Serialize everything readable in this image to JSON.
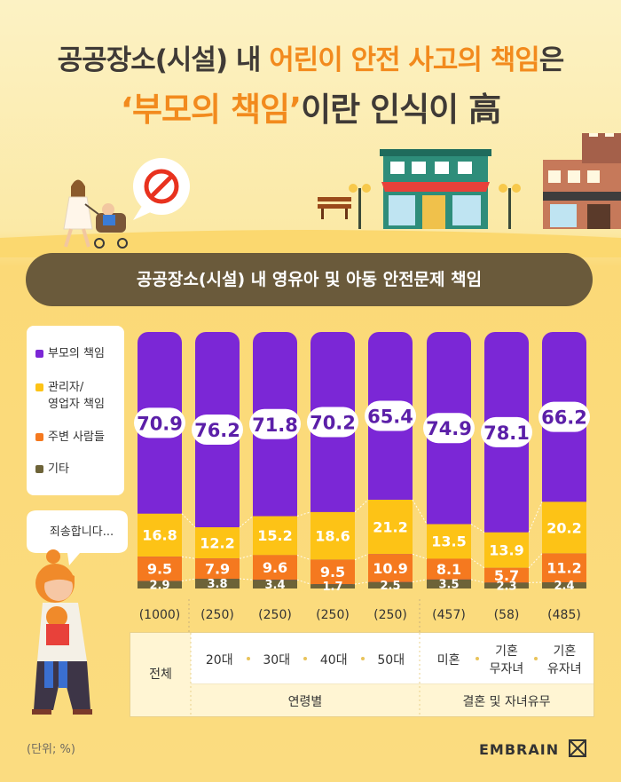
{
  "title": {
    "line1_prefix": "공공장소(시설) 내 ",
    "line1_highlight": "어린이 안전 사고의 책임",
    "line1_suffix": "은",
    "line2_highlight": "‘부모의 책임’",
    "line2_suffix": "이란 인식이 高"
  },
  "banner": "공공장소(시설) 내 영유아 및 아동 안전문제 책임",
  "speech_bubble": "죄송합니다...",
  "unit_note": "(단위; %)",
  "brand": "EMBRAIN",
  "colors": {
    "parent": "#7b27d6",
    "manager": "#fdc316",
    "people": "#f5791f",
    "other": "#6d6338",
    "accent": "#f28a1d"
  },
  "legend": [
    {
      "label": "부모의 책임",
      "color": "#7b27d6"
    },
    {
      "label": "관리자/\n영업자 책임",
      "color": "#fdc316"
    },
    {
      "label": "주변 사람들",
      "color": "#f5791f"
    },
    {
      "label": "기타",
      "color": "#6d6338"
    }
  ],
  "chart_data": {
    "type": "bar",
    "stacked": true,
    "categories": [
      "전체",
      "20대",
      "30대",
      "40대",
      "50대",
      "미혼",
      "기혼 무자녀",
      "기혼 유자녀"
    ],
    "sample_sizes": [
      "(1000)",
      "(250)",
      "(250)",
      "(250)",
      "(250)",
      "(457)",
      "(58)",
      "(485)"
    ],
    "series": [
      {
        "name": "부모의 책임",
        "values": [
          70.9,
          76.2,
          71.8,
          70.2,
          65.4,
          74.9,
          78.1,
          66.2
        ]
      },
      {
        "name": "관리자/영업자 책임",
        "values": [
          16.8,
          12.2,
          15.2,
          18.6,
          21.2,
          13.5,
          13.9,
          20.2
        ]
      },
      {
        "name": "주변 사람들",
        "values": [
          9.5,
          7.9,
          9.6,
          9.5,
          10.9,
          8.1,
          5.7,
          11.2
        ]
      },
      {
        "name": "기타",
        "values": [
          2.9,
          3.8,
          3.4,
          1.7,
          2.5,
          3.5,
          2.3,
          2.4
        ]
      }
    ],
    "ylim": [
      0,
      100
    ],
    "legend_position": "left"
  },
  "table": {
    "total_label": "전체",
    "age_items": [
      "20대",
      "30대",
      "40대",
      "50대"
    ],
    "age_group": "연령별",
    "marital_items": [
      "미혼",
      "기혼\n무자녀",
      "기혼\n유자녀"
    ],
    "marital_group": "결혼 및 자녀유무"
  }
}
